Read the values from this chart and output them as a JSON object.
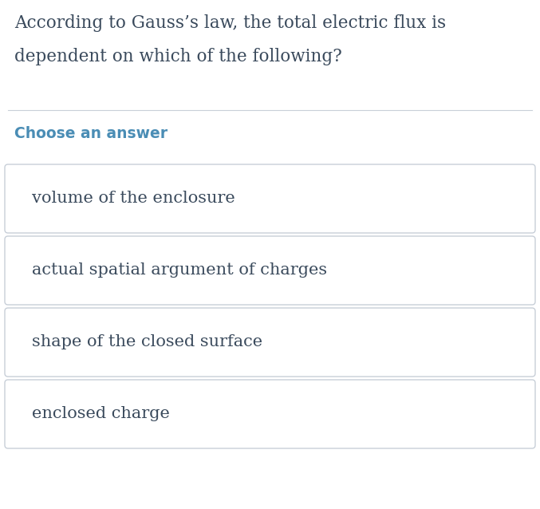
{
  "question_line1": "According to Gauss’s law, the total electric flux is",
  "question_line2": "dependent on which of the following?",
  "choose_label": "Choose an answer",
  "answers": [
    "volume of the enclosure",
    "actual spatial argument of charges",
    "shape of the closed surface",
    "enclosed charge"
  ],
  "bg_color": "#ffffff",
  "question_color": "#3a4a5c",
  "choose_color": "#4a8db5",
  "answer_text_color": "#3a4a5c",
  "box_edge_color": "#c8cfd8",
  "box_face_color": "#ffffff",
  "separator_color": "#c8cfd8",
  "question_fontsize": 15.5,
  "choose_fontsize": 13.5,
  "answer_fontsize": 15
}
